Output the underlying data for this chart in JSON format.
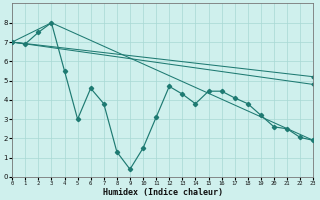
{
  "xlabel": "Humidex (Indice chaleur)",
  "bg_color": "#cff0ed",
  "grid_color": "#a8d8d4",
  "line_color": "#1e7a72",
  "xlim": [
    0,
    23
  ],
  "ylim": [
    0,
    9
  ],
  "xticks": [
    0,
    1,
    2,
    3,
    4,
    5,
    6,
    7,
    8,
    9,
    10,
    11,
    12,
    13,
    14,
    15,
    16,
    17,
    18,
    19,
    20,
    21,
    22,
    23
  ],
  "yticks": [
    0,
    1,
    2,
    3,
    4,
    5,
    6,
    7,
    8
  ],
  "wiggly_x": [
    0,
    1,
    2,
    3,
    4,
    5,
    6,
    7,
    8,
    9,
    10,
    11,
    12,
    13,
    14,
    15,
    16,
    17,
    18,
    19,
    20,
    21,
    22,
    23
  ],
  "wiggly_y": [
    7.0,
    6.9,
    7.5,
    8.0,
    5.5,
    3.0,
    4.6,
    3.8,
    1.3,
    0.4,
    1.5,
    3.1,
    4.7,
    4.3,
    3.8,
    4.45,
    4.45,
    4.1,
    3.8,
    3.2,
    2.6,
    2.5,
    2.05,
    1.9
  ],
  "smooth_lines": [
    {
      "x": [
        0,
        3,
        23
      ],
      "y": [
        7.0,
        8.0,
        1.9
      ]
    },
    {
      "x": [
        0,
        23
      ],
      "y": [
        7.0,
        5.2
      ]
    },
    {
      "x": [
        0,
        23
      ],
      "y": [
        7.0,
        4.8
      ]
    }
  ]
}
